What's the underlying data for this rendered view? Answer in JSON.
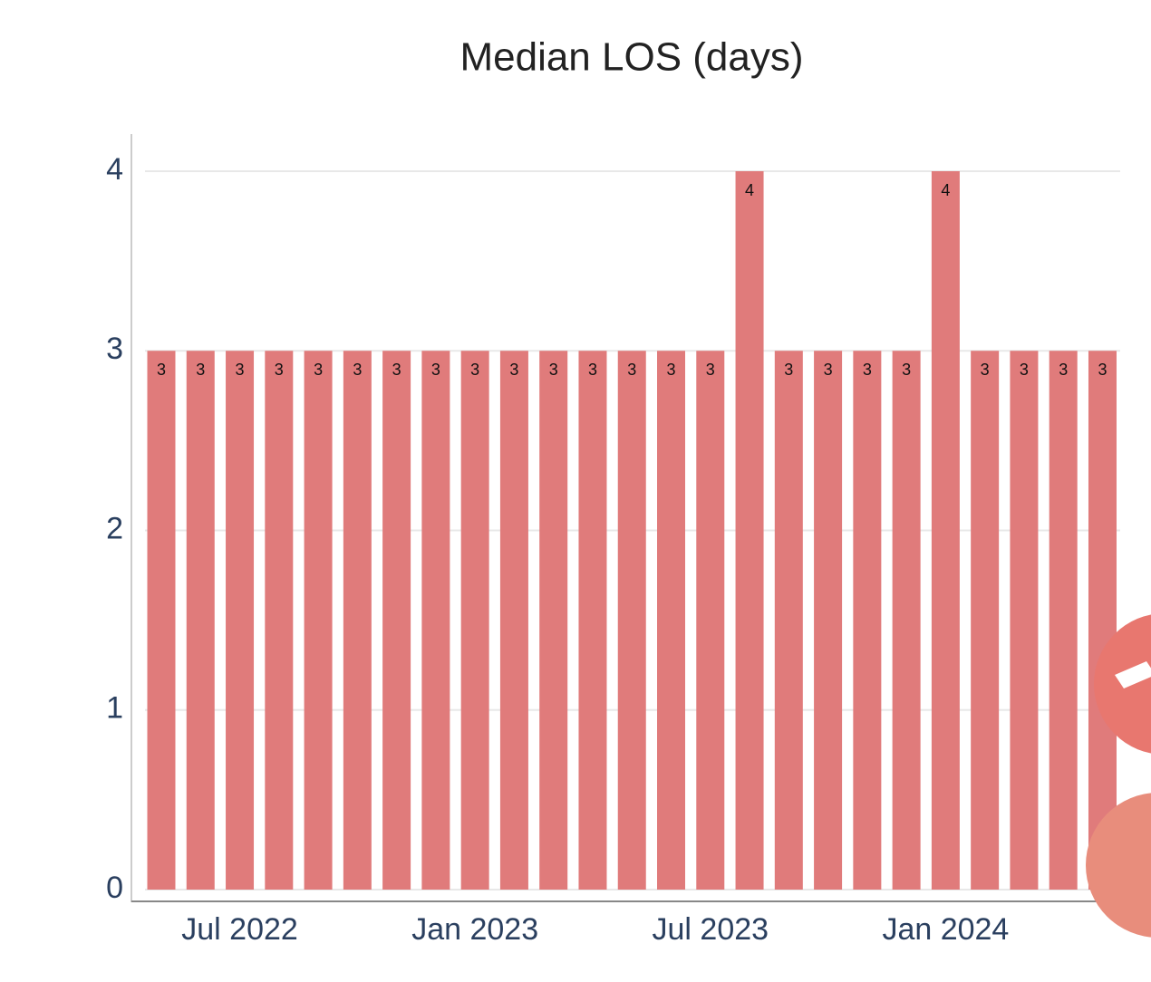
{
  "chart_data": {
    "type": "bar",
    "title": "Median LOS (days)",
    "x": [
      "2022-05",
      "2022-06",
      "2022-07",
      "2022-08",
      "2022-09",
      "2022-10",
      "2022-11",
      "2022-12",
      "2023-01",
      "2023-02",
      "2023-03",
      "2023-04",
      "2023-05",
      "2023-06",
      "2023-07",
      "2023-08",
      "2023-09",
      "2023-10",
      "2023-11",
      "2023-12",
      "2024-01",
      "2024-02",
      "2024-03",
      "2024-04",
      "2024-05"
    ],
    "values": [
      3,
      3,
      3,
      3,
      3,
      3,
      3,
      3,
      3,
      3,
      3,
      3,
      3,
      3,
      3,
      4,
      3,
      3,
      3,
      3,
      4,
      3,
      3,
      3,
      3
    ],
    "color": "#e07b7b",
    "ylim": [
      0,
      4
    ],
    "yticks": [
      0,
      1,
      2,
      3,
      4
    ],
    "xticks": [
      {
        "value": "2022-07",
        "label": "Jul 2022"
      },
      {
        "value": "2023-01",
        "label": "Jan 2023"
      },
      {
        "value": "2023-07",
        "label": "Jul 2023"
      },
      {
        "value": "2024-01",
        "label": "Jan 2024"
      }
    ],
    "grid": true
  }
}
